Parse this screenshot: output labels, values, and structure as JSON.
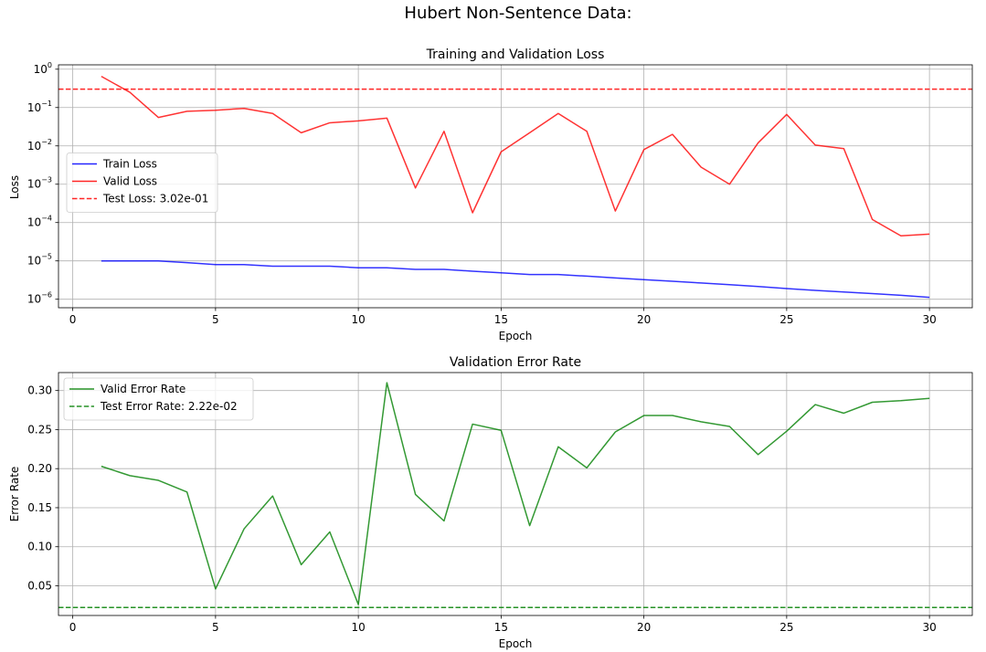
{
  "figure": {
    "suptitle": "Hubert Non-Sentence Data:"
  },
  "chart_data": [
    {
      "type": "line",
      "title": "Training and Validation Loss",
      "xlabel": "Epoch",
      "ylabel": "Loss",
      "yscale": "log",
      "xlim": [
        -0.5,
        31.5
      ],
      "ylim": [
        6e-07,
        1.3
      ],
      "xticks": [
        0,
        5,
        10,
        15,
        20,
        25,
        30
      ],
      "yticks": [
        {
          "value": 1e-06,
          "base": "10",
          "exp": "−6"
        },
        {
          "value": 1e-05,
          "base": "10",
          "exp": "−5"
        },
        {
          "value": 0.0001,
          "base": "10",
          "exp": "−4"
        },
        {
          "value": 0.001,
          "base": "10",
          "exp": "−3"
        },
        {
          "value": 0.01,
          "base": "10",
          "exp": "−2"
        },
        {
          "value": 0.1,
          "base": "10",
          "exp": "−1"
        },
        {
          "value": 1,
          "base": "10",
          "exp": "0"
        }
      ],
      "grid": true,
      "legend_position": "center-left",
      "x": [
        1,
        2,
        3,
        4,
        5,
        6,
        7,
        8,
        9,
        10,
        11,
        12,
        13,
        14,
        15,
        16,
        17,
        18,
        19,
        20,
        21,
        22,
        23,
        24,
        25,
        26,
        27,
        28,
        29,
        30
      ],
      "series": [
        {
          "name": "Train Loss",
          "color": "#0000ff",
          "style": "solid",
          "values": [
            1e-05,
            1e-05,
            1e-05,
            9e-06,
            8e-06,
            8e-06,
            7.3e-06,
            7.3e-06,
            7.3e-06,
            6.6e-06,
            6.6e-06,
            6e-06,
            6e-06,
            5.4e-06,
            4.9e-06,
            4.4e-06,
            4.4e-06,
            4e-06,
            3.6e-06,
            3.25e-06,
            2.95e-06,
            2.65e-06,
            2.4e-06,
            2.15e-06,
            1.9e-06,
            1.7e-06,
            1.55e-06,
            1.4e-06,
            1.27e-06,
            1.12e-06
          ]
        },
        {
          "name": "Valid Loss",
          "color": "#ff0000",
          "style": "solid",
          "values": [
            0.65,
            0.25,
            0.055,
            0.08,
            0.085,
            0.095,
            0.07,
            0.022,
            0.04,
            0.045,
            0.053,
            0.0008,
            0.024,
            0.00018,
            0.007,
            0.022,
            0.07,
            0.024,
            0.0002,
            0.008,
            0.02,
            0.0028,
            0.001,
            0.012,
            0.066,
            0.0105,
            0.0085,
            0.00012,
            4.5e-05,
            5e-05
          ]
        }
      ],
      "hlines": [
        {
          "name": "Test Loss: 3.02e-01",
          "value": 0.302,
          "color": "#ff0000",
          "style": "dashed"
        }
      ]
    },
    {
      "type": "line",
      "title": "Validation Error Rate",
      "xlabel": "Epoch",
      "ylabel": "Error Rate",
      "yscale": "linear",
      "xlim": [
        -0.5,
        31.5
      ],
      "ylim": [
        0.012,
        0.323
      ],
      "xticks": [
        0,
        5,
        10,
        15,
        20,
        25,
        30
      ],
      "yticks": [
        {
          "value": 0.05,
          "label": "0.05"
        },
        {
          "value": 0.1,
          "label": "0.10"
        },
        {
          "value": 0.15,
          "label": "0.15"
        },
        {
          "value": 0.2,
          "label": "0.20"
        },
        {
          "value": 0.25,
          "label": "0.25"
        },
        {
          "value": 0.3,
          "label": "0.30"
        }
      ],
      "grid": true,
      "legend_position": "top-left",
      "x": [
        1,
        2,
        3,
        4,
        5,
        6,
        7,
        8,
        9,
        10,
        11,
        12,
        13,
        14,
        15,
        16,
        17,
        18,
        19,
        20,
        21,
        22,
        23,
        24,
        25,
        26,
        27,
        28,
        29,
        30
      ],
      "series": [
        {
          "name": "Valid Error Rate",
          "color": "#008000",
          "style": "solid",
          "values": [
            0.203,
            0.191,
            0.185,
            0.17,
            0.046,
            0.123,
            0.165,
            0.077,
            0.119,
            0.026,
            0.31,
            0.167,
            0.133,
            0.257,
            0.249,
            0.127,
            0.228,
            0.201,
            0.247,
            0.268,
            0.268,
            0.26,
            0.254,
            0.218,
            0.248,
            0.282,
            0.271,
            0.285,
            0.287,
            0.29
          ]
        }
      ],
      "hlines": [
        {
          "name": "Test Error Rate: 2.22e-02",
          "value": 0.0222,
          "color": "#008000",
          "style": "dashed"
        }
      ]
    }
  ]
}
